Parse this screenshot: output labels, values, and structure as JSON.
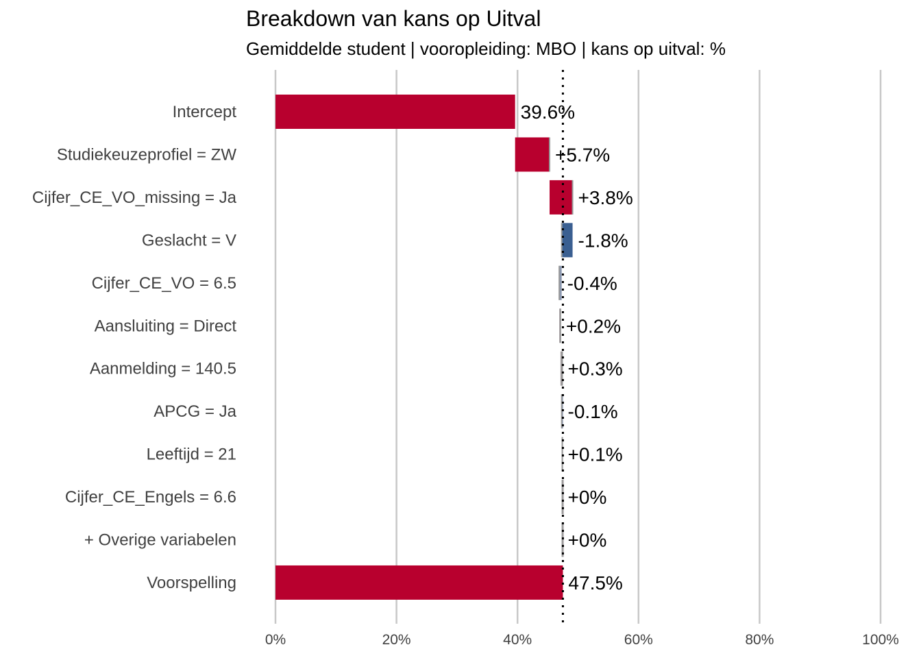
{
  "chart_data": {
    "type": "bar",
    "subtype": "waterfall-horizontal",
    "title": "Breakdown van kans op Uitval",
    "subtitle": "Gemiddelde student | vooropleiding: MBO | kans op uitval: %",
    "xlabel": "",
    "ylabel": "",
    "xlim": [
      0,
      100
    ],
    "x_ticks": [
      0,
      20,
      40,
      60,
      80,
      100
    ],
    "x_tick_labels": [
      "0%",
      "20%",
      "40%",
      "60%",
      "80%",
      "100%"
    ],
    "grid": "vertical",
    "legend": "none",
    "reference_line": 47.5,
    "categories": [
      "Intercept",
      "Studiekeuzeprofiel = ZW",
      "Cijfer_CE_VO_missing = Ja",
      "Geslacht = V",
      "Cijfer_CE_VO = 6.5",
      "Aansluiting = Direct",
      "Aanmelding = 140.5",
      "APCG = Ja",
      "Leeftijd = 21",
      "Cijfer_CE_Engels = 6.6",
      "+ Overige variabelen",
      "Voorspelling"
    ],
    "values": [
      39.6,
      5.7,
      3.8,
      -1.8,
      -0.4,
      0.2,
      0.3,
      -0.1,
      0.1,
      0,
      0,
      47.5
    ],
    "labels": [
      "39.6%",
      "+5.7%",
      "+3.8%",
      "-1.8%",
      "-0.4%",
      "+0.2%",
      "+0.3%",
      "-0.1%",
      "+0.1%",
      "+0%",
      "+0%",
      "47.5%"
    ],
    "colors": {
      "total": "#B8002E",
      "increase": "#B8002E",
      "decrease": "#3A5F91",
      "small_increase": "#A09A9C",
      "small_decrease": "#8A97B0",
      "grid": "#C8C8C8",
      "reference": "#000000"
    }
  }
}
